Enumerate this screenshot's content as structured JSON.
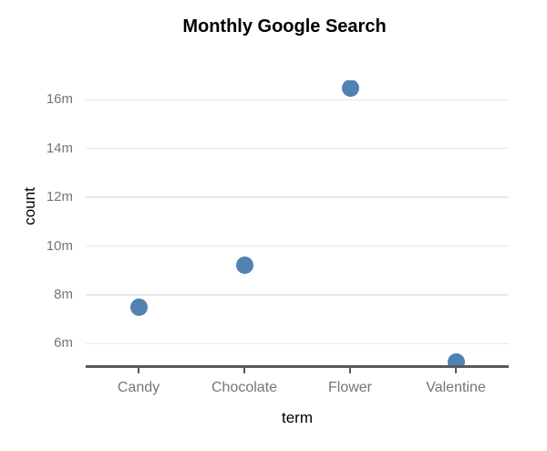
{
  "chart_data": {
    "type": "scatter",
    "title": "Monthly Google Search",
    "xlabel": "term",
    "ylabel": "count",
    "categories": [
      "Candy",
      "Chocolate",
      "Flower",
      "Valentine"
    ],
    "values_millions": [
      7.5,
      9.2,
      16.5,
      5.25
    ],
    "yticks": [
      {
        "value": 6,
        "label": "6m"
      },
      {
        "value": 8,
        "label": "8m"
      },
      {
        "value": 10,
        "label": "10m"
      },
      {
        "value": 12,
        "label": "12m"
      },
      {
        "value": 14,
        "label": "14m"
      },
      {
        "value": 16,
        "label": "16m"
      }
    ],
    "ylim_millions": [
      5.0,
      16.8
    ],
    "grid": true,
    "legend": false,
    "points_clipped_at_plot_edges": [
      "Flower",
      "Valentine"
    ],
    "point_radius_px": 9.5,
    "colors": {
      "point": "#5082b4",
      "grid": "#e9e9e9",
      "axis": "#595959",
      "tick_label": "#757575",
      "title": "#000000",
      "axis_title": "#000000"
    }
  }
}
